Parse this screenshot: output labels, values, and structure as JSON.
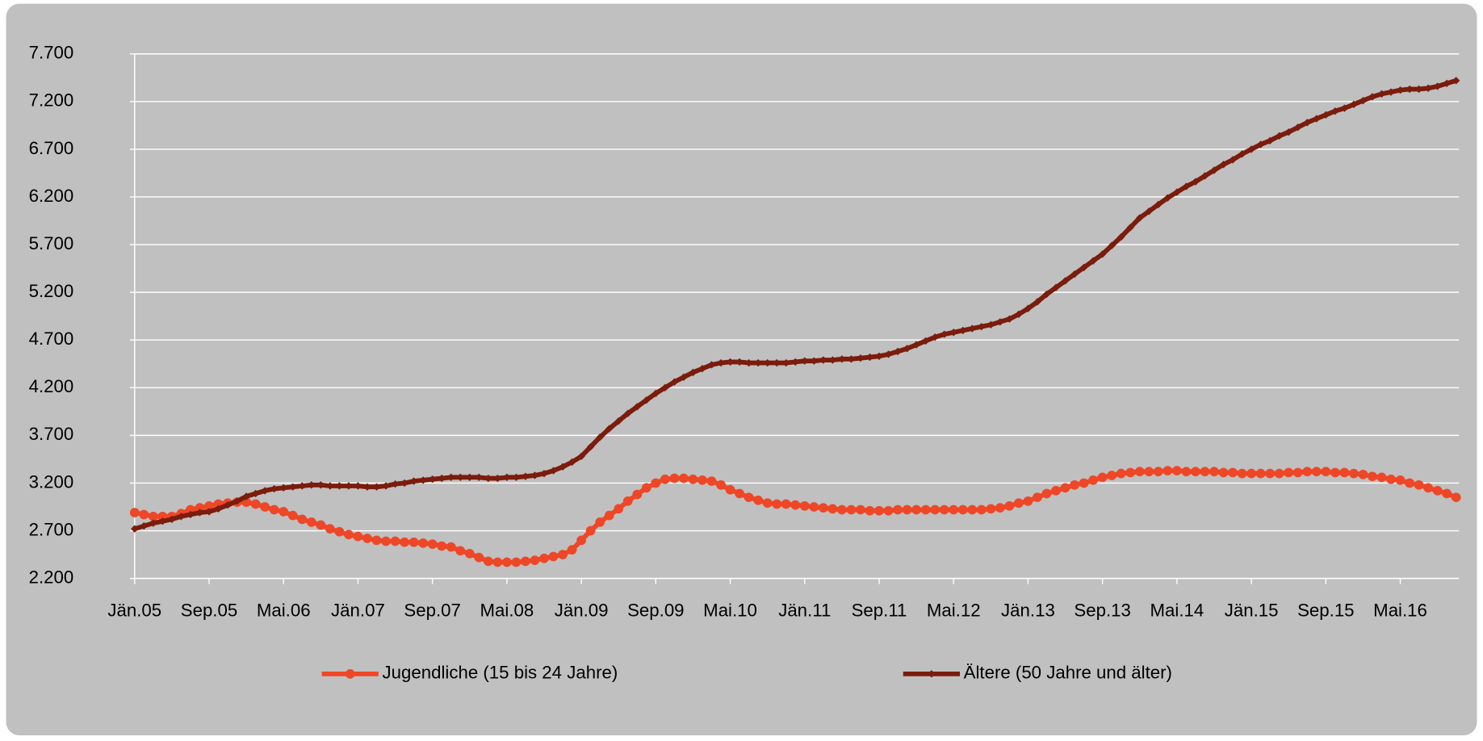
{
  "chart_data": {
    "type": "line",
    "categories": [
      "Jän.05",
      null,
      null,
      null,
      null,
      null,
      null,
      null,
      "Sep.05",
      null,
      null,
      null,
      null,
      null,
      null,
      null,
      "Mai.06",
      null,
      null,
      null,
      null,
      null,
      null,
      null,
      "Jän.07",
      null,
      null,
      null,
      null,
      null,
      null,
      null,
      "Sep.07",
      null,
      null,
      null,
      null,
      null,
      null,
      null,
      "Mai.08",
      null,
      null,
      null,
      null,
      null,
      null,
      null,
      "Jän.09",
      null,
      null,
      null,
      null,
      null,
      null,
      null,
      "Sep.09",
      null,
      null,
      null,
      null,
      null,
      null,
      null,
      "Mai.10",
      null,
      null,
      null,
      null,
      null,
      null,
      null,
      "Jän.11",
      null,
      null,
      null,
      null,
      null,
      null,
      null,
      "Sep.11",
      null,
      null,
      null,
      null,
      null,
      null,
      null,
      "Mai.12",
      null,
      null,
      null,
      null,
      null,
      null,
      null,
      "Jän.13",
      null,
      null,
      null,
      null,
      null,
      null,
      null,
      "Sep.13",
      null,
      null,
      null,
      null,
      null,
      null,
      null,
      "Mai.14",
      null,
      null,
      null,
      null,
      null,
      null,
      null,
      "Jän.15",
      null,
      null,
      null,
      null,
      null,
      null,
      null,
      "Sep.15",
      null,
      null,
      null,
      null,
      null,
      null,
      null,
      "Mai.16",
      null,
      null,
      null,
      null,
      null,
      null
    ],
    "series": [
      {
        "name": "Jugendliche (15 bis 24 Jahre)",
        "color": "#ee4727",
        "marker": "circle",
        "values": [
          2890,
          2870,
          2850,
          2850,
          2850,
          2880,
          2920,
          2940,
          2960,
          2980,
          2990,
          3000,
          3000,
          2980,
          2950,
          2920,
          2900,
          2860,
          2820,
          2790,
          2760,
          2720,
          2690,
          2660,
          2640,
          2620,
          2600,
          2590,
          2590,
          2580,
          2580,
          2570,
          2560,
          2540,
          2530,
          2490,
          2460,
          2420,
          2380,
          2370,
          2370,
          2370,
          2380,
          2390,
          2410,
          2430,
          2450,
          2500,
          2600,
          2700,
          2790,
          2860,
          2930,
          3010,
          3080,
          3150,
          3200,
          3240,
          3250,
          3250,
          3240,
          3230,
          3220,
          3180,
          3130,
          3090,
          3050,
          3020,
          2990,
          2980,
          2980,
          2970,
          2960,
          2950,
          2940,
          2930,
          2920,
          2920,
          2920,
          2910,
          2910,
          2910,
          2920,
          2920,
          2920,
          2920,
          2920,
          2920,
          2920,
          2920,
          2920,
          2920,
          2930,
          2940,
          2960,
          2990,
          3010,
          3050,
          3090,
          3120,
          3150,
          3180,
          3200,
          3230,
          3260,
          3280,
          3300,
          3310,
          3320,
          3320,
          3320,
          3330,
          3330,
          3320,
          3320,
          3320,
          3320,
          3310,
          3310,
          3300,
          3300,
          3300,
          3300,
          3300,
          3310,
          3310,
          3320,
          3320,
          3320,
          3310,
          3310,
          3300,
          3290,
          3270,
          3260,
          3240,
          3230,
          3200,
          3180,
          3150,
          3120,
          3090,
          3050
        ]
      },
      {
        "name": "Ältere (50 Jahre und älter)",
        "color": "#7b1c0c",
        "marker": "diamond",
        "values": [
          2720,
          2750,
          2780,
          2800,
          2820,
          2850,
          2870,
          2890,
          2900,
          2930,
          2970,
          3010,
          3060,
          3090,
          3120,
          3140,
          3150,
          3160,
          3170,
          3180,
          3180,
          3170,
          3170,
          3170,
          3170,
          3160,
          3160,
          3170,
          3190,
          3200,
          3220,
          3230,
          3240,
          3250,
          3260,
          3260,
          3260,
          3260,
          3250,
          3250,
          3260,
          3260,
          3270,
          3280,
          3300,
          3330,
          3370,
          3420,
          3480,
          3580,
          3680,
          3770,
          3850,
          3930,
          4000,
          4070,
          4140,
          4200,
          4260,
          4310,
          4360,
          4400,
          4440,
          4460,
          4470,
          4470,
          4460,
          4460,
          4460,
          4460,
          4460,
          4470,
          4480,
          4480,
          4490,
          4490,
          4500,
          4500,
          4510,
          4520,
          4530,
          4550,
          4580,
          4610,
          4650,
          4690,
          4730,
          4760,
          4780,
          4800,
          4820,
          4840,
          4860,
          4890,
          4920,
          4970,
          5030,
          5100,
          5180,
          5250,
          5320,
          5390,
          5460,
          5530,
          5600,
          5690,
          5780,
          5880,
          5980,
          6050,
          6120,
          6190,
          6250,
          6310,
          6360,
          6420,
          6480,
          6540,
          6590,
          6650,
          6700,
          6750,
          6790,
          6840,
          6880,
          6930,
          6980,
          7020,
          7060,
          7100,
          7130,
          7170,
          7210,
          7250,
          7280,
          7300,
          7320,
          7330,
          7330,
          7340,
          7360,
          7390,
          7420
        ]
      }
    ],
    "ylim": [
      2200,
      7700
    ],
    "yticks": [
      {
        "value": 2200,
        "label": "2.200"
      },
      {
        "value": 2700,
        "label": "2.700"
      },
      {
        "value": 3200,
        "label": "3.200"
      },
      {
        "value": 3700,
        "label": "3.700"
      },
      {
        "value": 4200,
        "label": "4.200"
      },
      {
        "value": 4700,
        "label": "4.700"
      },
      {
        "value": 5200,
        "label": "5.200"
      },
      {
        "value": 5700,
        "label": "5.700"
      },
      {
        "value": 6200,
        "label": "6.200"
      },
      {
        "value": 6700,
        "label": "6.700"
      },
      {
        "value": 7200,
        "label": "7.200"
      },
      {
        "value": 7700,
        "label": "7.700"
      }
    ],
    "grid": true,
    "legend": "bottom"
  }
}
